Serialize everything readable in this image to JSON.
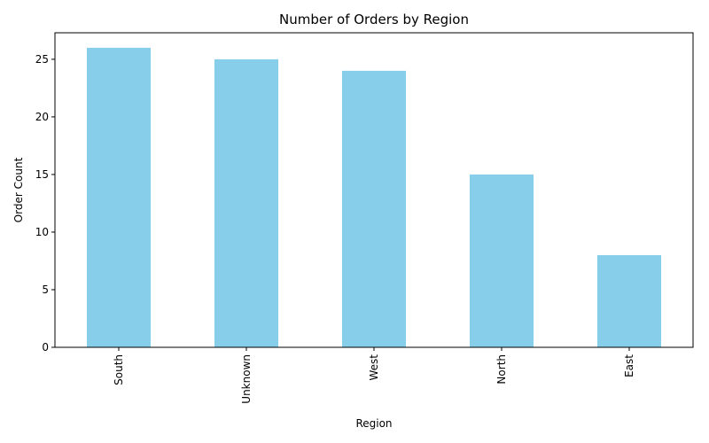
{
  "chart_data": {
    "type": "bar",
    "title": "Number of Orders by Region",
    "xlabel": "Region",
    "ylabel": "Order Count",
    "categories": [
      "South",
      "Unknown",
      "West",
      "North",
      "East"
    ],
    "values": [
      26,
      25,
      24,
      15,
      8
    ],
    "ylim": [
      0,
      27.3
    ],
    "yticks": [
      0,
      5,
      10,
      15,
      20,
      25
    ],
    "bar_color": "#87CEEB",
    "grid": false,
    "legend": "none"
  }
}
